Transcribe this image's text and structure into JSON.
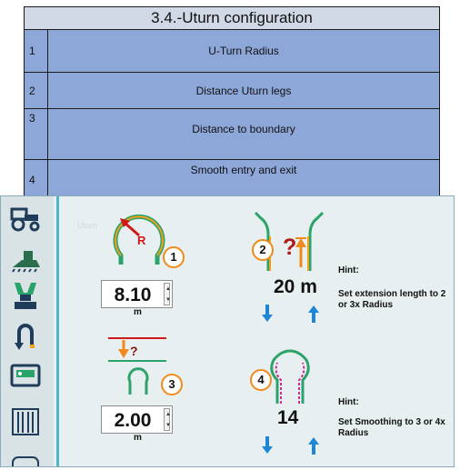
{
  "table": {
    "title": "3.4.-Uturn configuration",
    "rows": [
      {
        "num": "1",
        "label": "U-Turn Radius"
      },
      {
        "num": "2",
        "label": "Distance Uturn legs"
      },
      {
        "num": "3",
        "label": "Distance to boundary"
      },
      {
        "num": "4",
        "label": "Smooth entry and exit"
      }
    ]
  },
  "app": {
    "ghost_label": "Uturn",
    "radius": {
      "badge": "1",
      "marker": "R",
      "value": "8.10",
      "unit": "m"
    },
    "legs": {
      "badge": "2",
      "symbol": "?",
      "value": "20 m"
    },
    "hint1": {
      "title": "Hint:",
      "text": "Set extension length to 2 or 3x Radius"
    },
    "boundary": {
      "badge": "3",
      "symbol": "?",
      "value": "2.00",
      "unit": "m"
    },
    "smoothing": {
      "badge": "4",
      "value": "14"
    },
    "hint2": {
      "title": "Hint:",
      "text": "Set Smoothing to 3 or 4x Radius"
    },
    "sidebar": [
      "tractor-icon",
      "implement-icon",
      "sections-icon",
      "uturn-icon",
      "display-icon",
      "boundary-icon",
      "more-icon"
    ],
    "colors": {
      "accent": "#49b9c9",
      "green": "#2ca36a",
      "orange": "#f08a1b",
      "arrow_blue": "#1d86d6",
      "red": "#d01818"
    }
  }
}
